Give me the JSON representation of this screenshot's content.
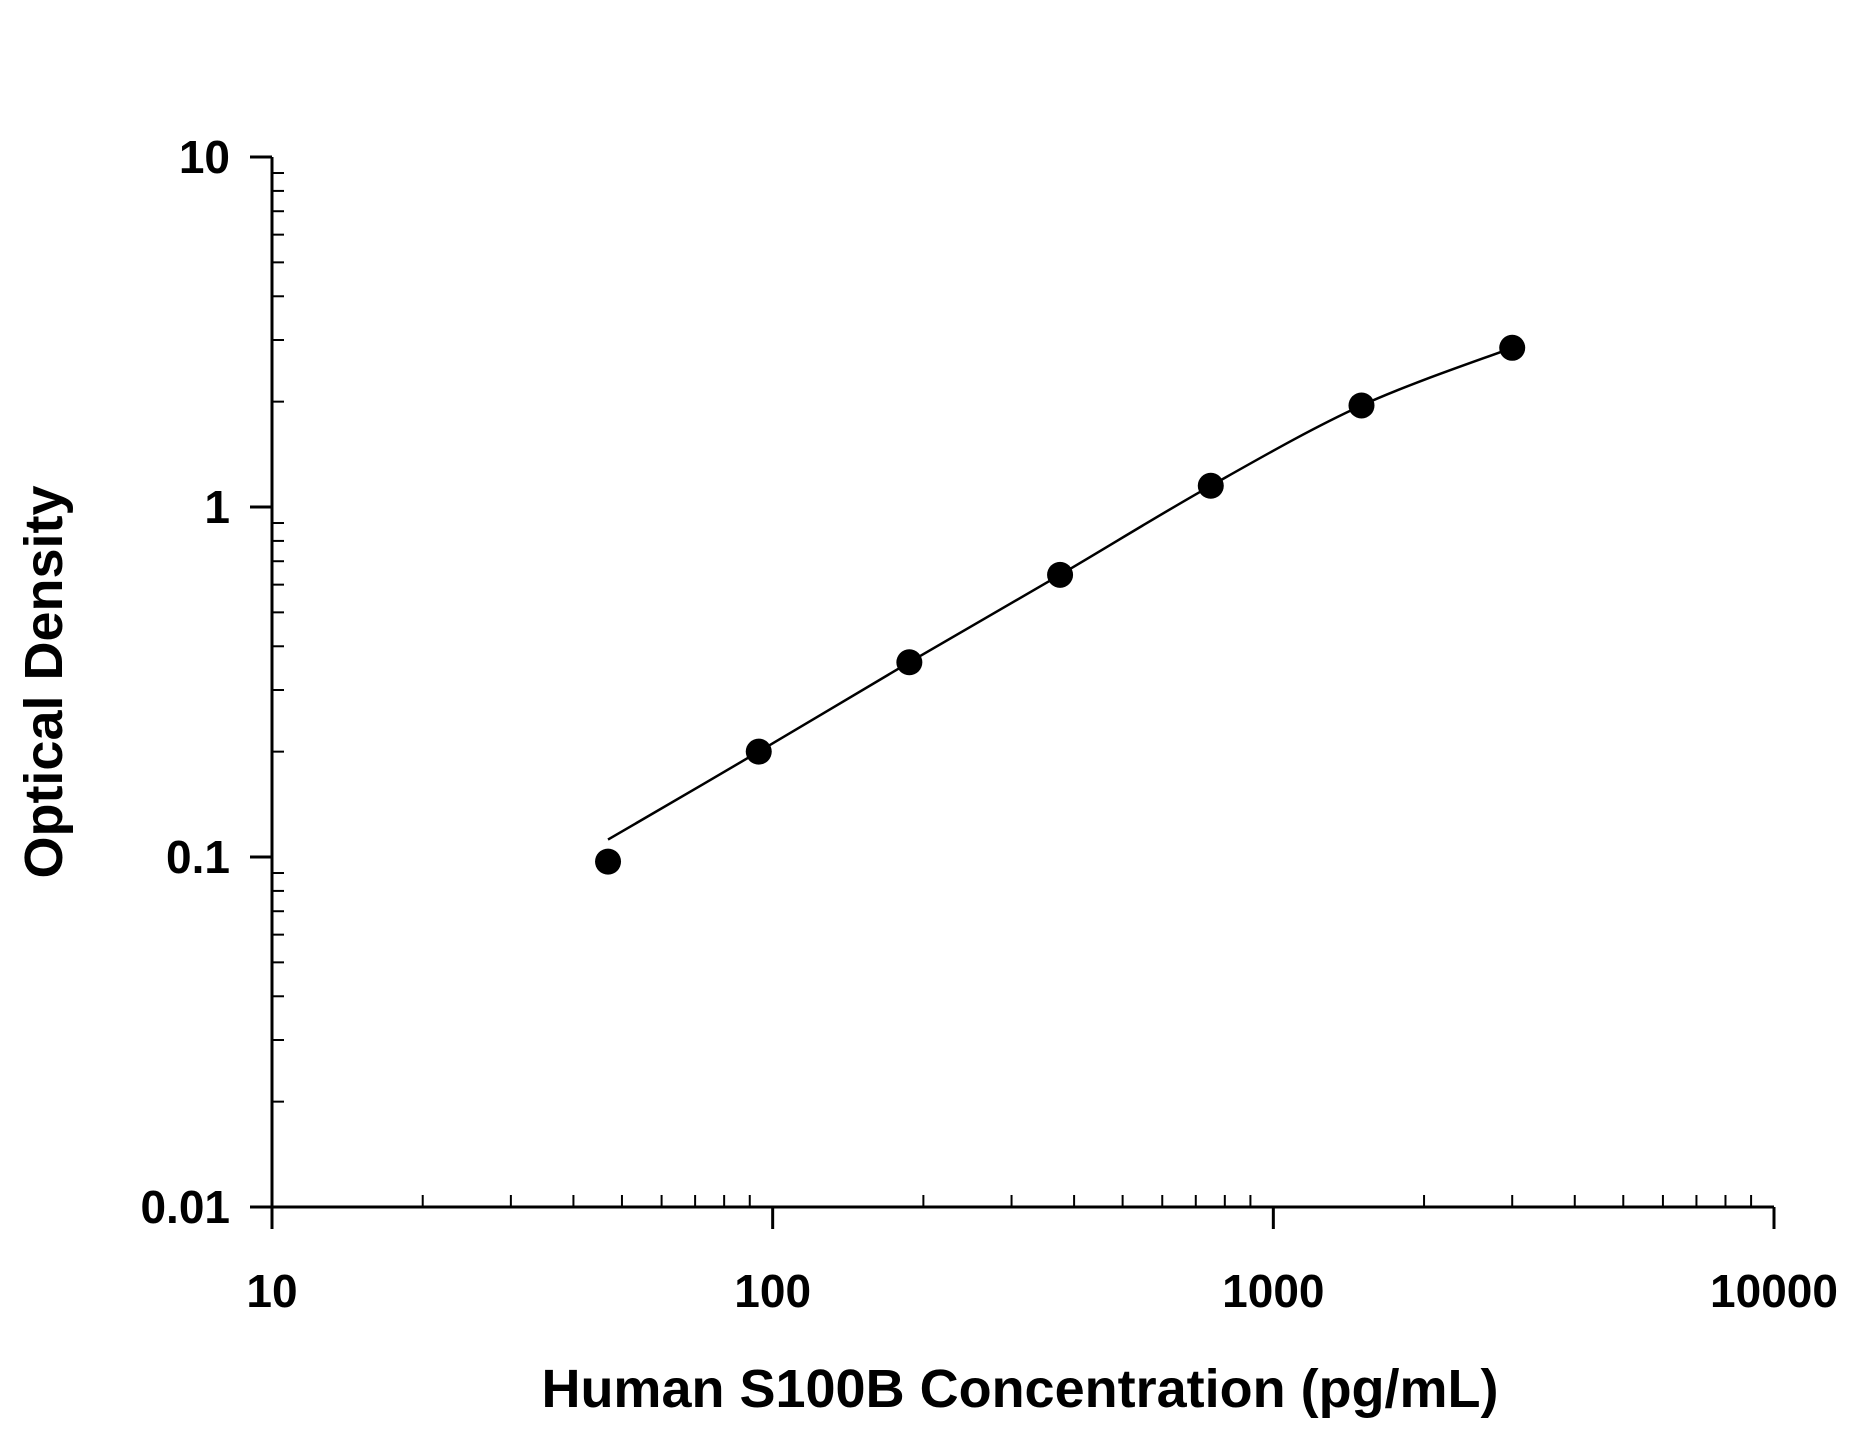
{
  "chart_data": {
    "type": "scatter",
    "xlabel": "Human S100B Concentration (pg/mL)",
    "ylabel": "Optical Density",
    "x_scale": "log",
    "y_scale": "log",
    "xlim": [
      10,
      10000
    ],
    "ylim": [
      0.01,
      10
    ],
    "x_ticks": [
      "10",
      "100",
      "1000",
      "10000"
    ],
    "y_ticks": [
      "10",
      "1",
      "0.1",
      "0.01"
    ],
    "grid": false,
    "legend": "none",
    "series": [
      {
        "x": [
          46.9,
          93.8,
          187.5,
          375,
          750,
          1500,
          3000
        ],
        "y": [
          0.097,
          0.2,
          0.36,
          0.64,
          1.15,
          1.95,
          2.85
        ],
        "marker": "filled-circle",
        "fit_curve": true
      }
    ],
    "colors": {
      "axis": "#000000",
      "points": "#000000",
      "curve": "#000000"
    }
  }
}
